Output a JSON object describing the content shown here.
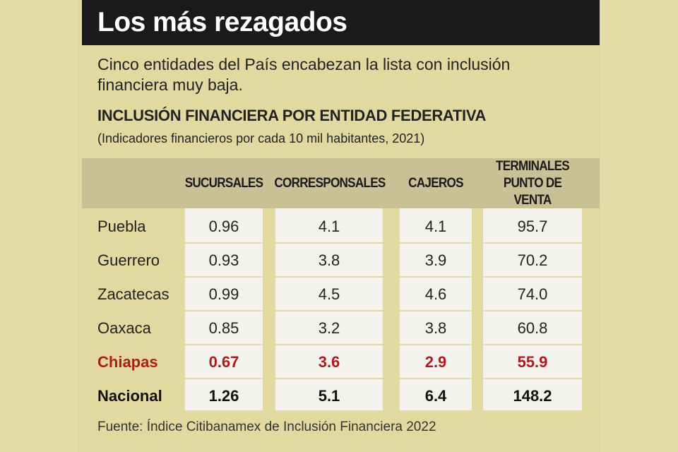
{
  "title": "Los más rezagados",
  "intro": "Cinco entidades del País encabezan la lista con inclusión financiera muy baja.",
  "subtitle": "INCLUSIÓN FINANCIERA POR ENTIDAD FEDERATIVA",
  "note": "(Indicadores financieros por cada 10 mil habitantes, 2021)",
  "columns": [
    "SUCURSALES",
    "CORRESPONSALES",
    "CAJEROS",
    "TERMINALES\nPUNTO DE VENTA"
  ],
  "rows": [
    {
      "entity": "Puebla",
      "values": [
        "0.96",
        "4.1",
        "4.1",
        "95.7"
      ],
      "style": "normal"
    },
    {
      "entity": "Guerrero",
      "values": [
        "0.93",
        "3.8",
        "3.9",
        "70.2"
      ],
      "style": "normal"
    },
    {
      "entity": "Zacatecas",
      "values": [
        "0.99",
        "4.5",
        "4.6",
        "74.0"
      ],
      "style": "normal"
    },
    {
      "entity": "Oaxaca",
      "values": [
        "0.85",
        "3.2",
        "3.8",
        "60.8"
      ],
      "style": "normal"
    },
    {
      "entity": "Chiapas",
      "values": [
        "0.67",
        "3.6",
        "2.9",
        "55.9"
      ],
      "style": "highlight"
    },
    {
      "entity": "Nacional",
      "values": [
        "1.26",
        "5.1",
        "6.4",
        "148.2"
      ],
      "style": "bold"
    }
  ],
  "source": "Fuente: Índice Citibanamex de Inclusión Financiera 2022",
  "colors": {
    "background": "#e2d9a0",
    "title_bar": "#1a1a1a",
    "header_band": "#c9c195",
    "cell_bg": "#f3f2ec",
    "highlight": "#b3191c"
  }
}
